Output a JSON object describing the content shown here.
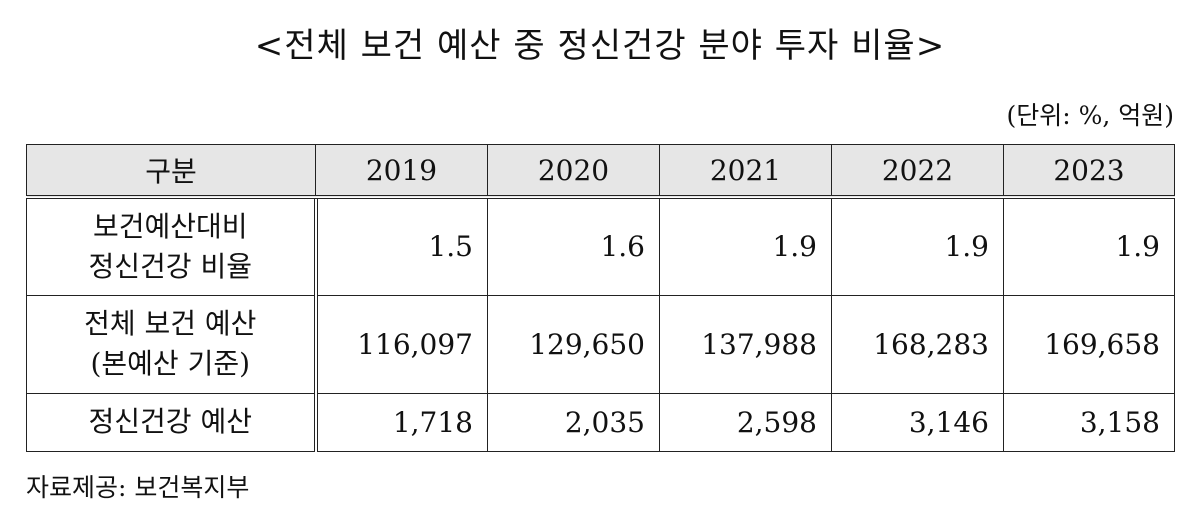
{
  "title": "<전체 보건 예산 중 정신건강 분야 투자 비율>",
  "unit_note": "(단위: %, 억원)",
  "table": {
    "corner_header": "구분",
    "years": [
      "2019",
      "2020",
      "2021",
      "2022",
      "2023"
    ],
    "rows": [
      {
        "label_line1": "보건예산대비",
        "label_line2": "정신건강 비율",
        "values": [
          "1.5",
          "1.6",
          "1.9",
          "1.9",
          "1.9"
        ]
      },
      {
        "label_line1": "전체 보건 예산",
        "label_line2": "(본예산 기준)",
        "values": [
          "116,097",
          "129,650",
          "137,988",
          "168,283",
          "169,658"
        ]
      },
      {
        "label_line1": "정신건강 예산",
        "values": [
          "1,718",
          "2,035",
          "2,598",
          "3,146",
          "3,158"
        ]
      }
    ]
  },
  "source": "자료제공:  보건복지부"
}
